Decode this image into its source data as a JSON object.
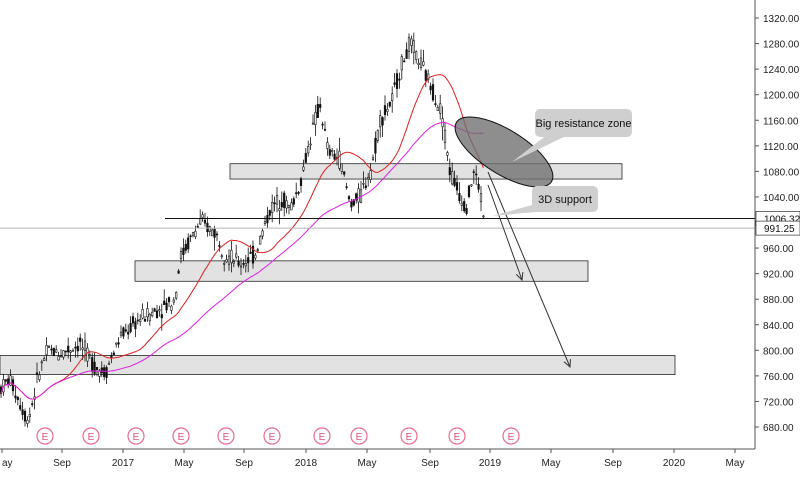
{
  "chart_data": {
    "type": "candlestick",
    "y_axis": {
      "ticks": [
        680,
        720,
        760,
        800,
        840,
        880,
        920,
        960,
        1040,
        1080,
        1120,
        1160,
        1200,
        1240,
        1280,
        1320
      ],
      "range": [
        660,
        1340
      ],
      "position": "right"
    },
    "x_axis": {
      "ticks": [
        "ay",
        "Sep",
        "2017",
        "May",
        "Sep",
        "2018",
        "May",
        "Sep",
        "2019",
        "May",
        "Sep",
        "2020",
        "May"
      ]
    },
    "price_markers": [
      {
        "label": "1006.32",
        "value": 1006.32,
        "style": "line"
      },
      {
        "label": "991.25",
        "value": 991.25,
        "style": "gray"
      }
    ],
    "zones": [
      {
        "name": "upper-resistance-zone",
        "low": 1068,
        "high": 1092
      },
      {
        "name": "middle-support-zone",
        "low": 908,
        "high": 940
      },
      {
        "name": "lower-support-zone",
        "low": 762,
        "high": 792
      }
    ],
    "callouts": [
      {
        "id": "resistance",
        "text": "Big resistance zone"
      },
      {
        "id": "support",
        "text": "3D support"
      }
    ],
    "earnings_marker": "E",
    "earnings_count": 11,
    "moving_averages": [
      {
        "id": "ma-fast",
        "color": "#e02020"
      },
      {
        "id": "ma-slow",
        "color": "#e020e0"
      }
    ]
  }
}
